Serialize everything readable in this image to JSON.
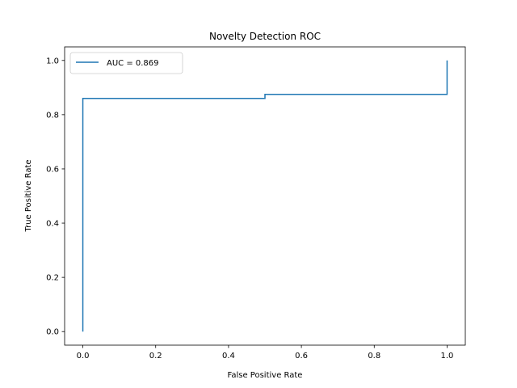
{
  "chart_data": {
    "type": "line",
    "title": "Novelty Detection ROC",
    "xlabel": "False Positive Rate",
    "ylabel": "True Positive Rate",
    "xlim": [
      -0.05,
      1.05
    ],
    "ylim": [
      -0.05,
      1.05
    ],
    "x_ticks": [
      "0.0",
      "0.2",
      "0.4",
      "0.6",
      "0.8",
      "1.0"
    ],
    "y_ticks": [
      "0.0",
      "0.2",
      "0.4",
      "0.6",
      "0.8",
      "1.0"
    ],
    "grid": false,
    "legend_position": "upper-left",
    "series": [
      {
        "name": "AUC = 0.869",
        "color": "#1f77b4",
        "step": true,
        "x": [
          0.0,
          0.0,
          0.5,
          0.5,
          1.0,
          1.0
        ],
        "y": [
          0.0,
          0.86,
          0.86,
          0.875,
          0.875,
          1.0
        ]
      }
    ]
  }
}
